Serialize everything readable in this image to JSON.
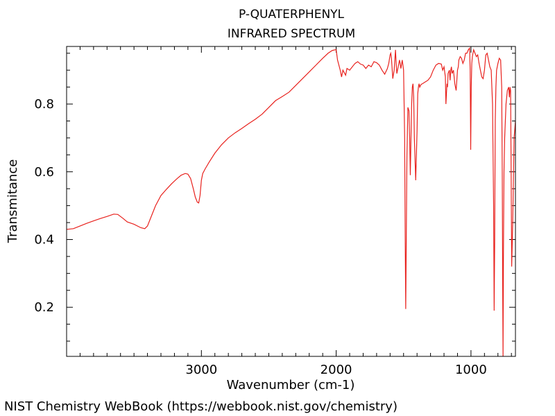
{
  "chart_data": {
    "type": "line",
    "title": "P-QUATERPHENYL",
    "subtitle": "INFRARED SPECTRUM",
    "xlabel": "Wavenumber (cm-1)",
    "ylabel": "Transmitance",
    "xlim": [
      4000,
      670
    ],
    "ylim": [
      0.055,
      0.97
    ],
    "x_ticks": [
      3000,
      2000,
      1000
    ],
    "x_tick_labels": [
      "3000",
      "2000",
      "1000"
    ],
    "y_ticks": [
      0.2,
      0.4,
      0.6,
      0.8
    ],
    "y_tick_labels": [
      "0.2",
      "0.4",
      "0.6",
      "0.8"
    ],
    "grid": false,
    "legend": "none",
    "line_color": "#e8211d",
    "series": [
      {
        "x": [
          4000,
          3950,
          3900,
          3850,
          3800,
          3750,
          3700,
          3650,
          3620,
          3580,
          3550,
          3500,
          3450,
          3420,
          3400,
          3370,
          3340,
          3300,
          3260,
          3220,
          3180,
          3150,
          3120,
          3100,
          3080,
          3060,
          3045,
          3030,
          3020,
          3010,
          3000,
          2990,
          2970,
          2940,
          2900,
          2850,
          2800,
          2750,
          2700,
          2650,
          2600,
          2550,
          2500,
          2450,
          2400,
          2350,
          2300,
          2250,
          2200,
          2150,
          2100,
          2060,
          2030,
          2010,
          2000,
          1990,
          1970,
          1960,
          1950,
          1930,
          1920,
          1900,
          1880,
          1860,
          1840,
          1820,
          1800,
          1780,
          1760,
          1740,
          1720,
          1700,
          1680,
          1660,
          1640,
          1620,
          1610,
          1600,
          1595,
          1590,
          1580,
          1570,
          1560,
          1555,
          1550,
          1540,
          1530,
          1520,
          1510,
          1500,
          1492,
          1488,
          1484,
          1480,
          1475,
          1468,
          1460,
          1455,
          1450,
          1445,
          1440,
          1435,
          1430,
          1425,
          1420,
          1410,
          1400,
          1395,
          1390,
          1385,
          1380,
          1370,
          1360,
          1340,
          1320,
          1300,
          1280,
          1260,
          1240,
          1220,
          1210,
          1200,
          1190,
          1186,
          1182,
          1178,
          1174,
          1170,
          1165,
          1160,
          1155,
          1150,
          1145,
          1140,
          1130,
          1120,
          1110,
          1100,
          1094,
          1090,
          1080,
          1070,
          1060,
          1050,
          1040,
          1030,
          1020,
          1010,
          1006,
          1002,
          998,
          994,
          990,
          980,
          970,
          960,
          950,
          940,
          930,
          920,
          910,
          900,
          890,
          880,
          870,
          860,
          850,
          840,
          832,
          828,
          824,
          820,
          815,
          810,
          800,
          790,
          780,
          772,
          768,
          765,
          762,
          760,
          755,
          750,
          740,
          730,
          720,
          715,
          710,
          706,
          702,
          698,
          690,
          680,
          670
        ],
        "y": [
          0.43,
          0.432,
          0.44,
          0.448,
          0.455,
          0.462,
          0.468,
          0.475,
          0.474,
          0.462,
          0.452,
          0.445,
          0.435,
          0.432,
          0.44,
          0.47,
          0.5,
          0.53,
          0.548,
          0.565,
          0.58,
          0.59,
          0.595,
          0.593,
          0.58,
          0.55,
          0.525,
          0.51,
          0.508,
          0.53,
          0.575,
          0.595,
          0.61,
          0.63,
          0.655,
          0.68,
          0.7,
          0.715,
          0.728,
          0.742,
          0.755,
          0.77,
          0.79,
          0.81,
          0.822,
          0.835,
          0.855,
          0.875,
          0.895,
          0.915,
          0.935,
          0.95,
          0.958,
          0.96,
          0.96,
          0.93,
          0.9,
          0.88,
          0.9,
          0.885,
          0.905,
          0.9,
          0.91,
          0.92,
          0.925,
          0.918,
          0.915,
          0.905,
          0.915,
          0.91,
          0.925,
          0.922,
          0.915,
          0.9,
          0.888,
          0.905,
          0.92,
          0.945,
          0.95,
          0.935,
          0.875,
          0.9,
          0.96,
          0.92,
          0.89,
          0.91,
          0.93,
          0.905,
          0.93,
          0.9,
          0.7,
          0.4,
          0.195,
          0.4,
          0.65,
          0.79,
          0.78,
          0.7,
          0.59,
          0.7,
          0.8,
          0.85,
          0.86,
          0.82,
          0.7,
          0.575,
          0.72,
          0.83,
          0.85,
          0.86,
          0.85,
          0.858,
          0.86,
          0.865,
          0.87,
          0.88,
          0.9,
          0.915,
          0.92,
          0.918,
          0.9,
          0.91,
          0.88,
          0.8,
          0.83,
          0.86,
          0.85,
          0.89,
          0.895,
          0.9,
          0.87,
          0.9,
          0.91,
          0.89,
          0.9,
          0.86,
          0.84,
          0.9,
          0.91,
          0.93,
          0.94,
          0.935,
          0.92,
          0.93,
          0.95,
          0.95,
          0.96,
          0.965,
          0.9,
          0.665,
          0.85,
          0.92,
          0.94,
          0.96,
          0.95,
          0.94,
          0.945,
          0.92,
          0.9,
          0.88,
          0.875,
          0.9,
          0.945,
          0.95,
          0.93,
          0.91,
          0.9,
          0.8,
          0.5,
          0.19,
          0.4,
          0.75,
          0.85,
          0.9,
          0.92,
          0.935,
          0.93,
          0.85,
          0.6,
          0.3,
          0.05,
          0.3,
          0.6,
          0.7,
          0.8,
          0.84,
          0.85,
          0.82,
          0.85,
          0.84,
          0.6,
          0.32,
          0.45,
          0.7,
          0.75
        ]
      }
    ]
  },
  "footer": {
    "credit": "NIST Chemistry WebBook (https://webbook.nist.gov/chemistry)"
  }
}
